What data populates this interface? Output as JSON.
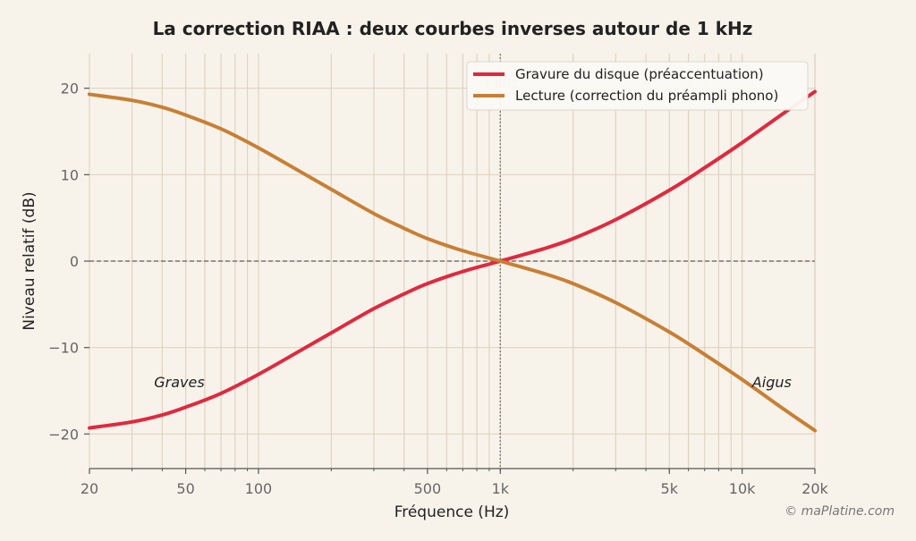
{
  "chart_data": {
    "type": "line",
    "title": "La correction RIAA : deux courbes inverses autour de 1 kHz",
    "xlabel": "Fréquence (Hz)",
    "ylabel": "Niveau relatif (dB)",
    "xscale": "log",
    "xlim": [
      20,
      20000
    ],
    "ylim": [
      -24,
      24
    ],
    "grid": true,
    "legend_position": "top-right",
    "x_ticks": [
      {
        "value": 20,
        "label": "20"
      },
      {
        "value": 50,
        "label": "50"
      },
      {
        "value": 100,
        "label": "100"
      },
      {
        "value": 500,
        "label": "500"
      },
      {
        "value": 1000,
        "label": "1k"
      },
      {
        "value": 5000,
        "label": "5k"
      },
      {
        "value": 10000,
        "label": "10k"
      },
      {
        "value": 20000,
        "label": "20k"
      }
    ],
    "y_ticks": [
      {
        "value": 20,
        "label": "20"
      },
      {
        "value": 10,
        "label": "10"
      },
      {
        "value": 0,
        "label": "0"
      },
      {
        "value": -10,
        "label": "−10"
      },
      {
        "value": -20,
        "label": "−20"
      }
    ],
    "series": [
      {
        "name": "Gravure du disque (préaccentuation)",
        "color": "#e0293f",
        "x": [
          20,
          30,
          40,
          50,
          70,
          100,
          150,
          200,
          300,
          400,
          500,
          700,
          1000,
          1500,
          2000,
          3000,
          5000,
          7000,
          10000,
          15000,
          20000
        ],
        "y": [
          -19.3,
          -18.6,
          -17.8,
          -16.9,
          -15.3,
          -13.1,
          -10.3,
          -8.3,
          -5.5,
          -3.8,
          -2.6,
          -1.2,
          0.0,
          1.4,
          2.6,
          4.8,
          8.2,
          10.8,
          13.7,
          17.2,
          19.6
        ]
      },
      {
        "name": "Lecture (correction du préampli phono)",
        "color": "#c87f35",
        "x": [
          20,
          30,
          40,
          50,
          70,
          100,
          150,
          200,
          300,
          400,
          500,
          700,
          1000,
          1500,
          2000,
          3000,
          5000,
          7000,
          10000,
          15000,
          20000
        ],
        "y": [
          19.3,
          18.6,
          17.8,
          16.9,
          15.3,
          13.1,
          10.3,
          8.3,
          5.5,
          3.8,
          2.6,
          1.2,
          0.0,
          -1.4,
          -2.6,
          -4.8,
          -8.2,
          -10.8,
          -13.7,
          -17.2,
          -19.6
        ]
      }
    ],
    "reference_line": {
      "axis": "y",
      "value": 0
    },
    "marker_line": {
      "axis": "x",
      "value": 1000,
      "label": "1 kHz"
    },
    "annotations": [
      {
        "text": "Graves",
        "x": 37,
        "y": -14.6
      },
      {
        "text": "Aigus",
        "x": 11000,
        "y": -14.6
      }
    ],
    "credit": "© maPlatine.com"
  }
}
